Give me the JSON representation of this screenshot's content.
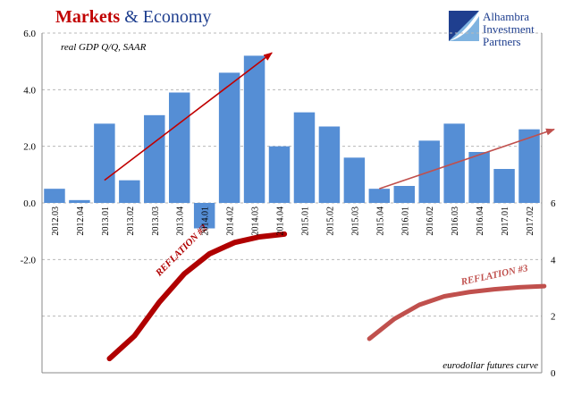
{
  "header": {
    "title_part1": "Markets",
    "title_part2": " & Economy"
  },
  "logo": {
    "line1": "Alhambra",
    "line2": "Investment",
    "line3": "Partners",
    "icon": "alhambra-logo-icon",
    "colors": {
      "navy": "#1f3f8f",
      "sky": "#7fb3e0"
    }
  },
  "colors": {
    "bar": "#558ed5",
    "arrow": "#c00000",
    "reflation2": "#b00000",
    "reflation3": "#c0504d",
    "grid": "#b8b8b8",
    "axis_text": "#000000"
  },
  "chart_data": {
    "type": "bar",
    "title": "",
    "subtitle": "real GDP Q/Q, SAAR",
    "categories": [
      "2012.03",
      "2012.04",
      "2013.01",
      "2013.02",
      "2013.03",
      "2013.04",
      "2014.01",
      "2014.02",
      "2014.03",
      "2014.04",
      "2015.01",
      "2015.02",
      "2015.03",
      "2015.04",
      "2016.01",
      "2016.02",
      "2016.03",
      "2016.04",
      "2017.01",
      "2017.02"
    ],
    "series": [
      {
        "values": [
          0.5,
          0.1,
          2.8,
          0.8,
          3.1,
          3.9,
          -0.9,
          4.6,
          5.2,
          2.0,
          3.2,
          2.7,
          1.6,
          0.5,
          0.6,
          2.2,
          2.8,
          1.8,
          1.2,
          2.6
        ]
      }
    ],
    "left_axis": {
      "ylim": [
        -6.0,
        6.0
      ],
      "tick_labels": [
        "6.0",
        "4.0",
        "2.0",
        "0.0",
        "-2.0"
      ],
      "tick_values": [
        6,
        4,
        2,
        0,
        -2
      ]
    },
    "right_axis": {
      "ylim": [
        0,
        6
      ],
      "tick_labels": [
        "6",
        "4",
        "2",
        "0"
      ],
      "tick_values": [
        6,
        4,
        2,
        0
      ],
      "label": "eurodollar futures curve"
    },
    "curves": [
      {
        "name": "REFLATION #2",
        "x": [
          2.7,
          3.7,
          4.7,
          5.7,
          6.7,
          7.7,
          8.7,
          9.7
        ],
        "y": [
          0.5,
          1.3,
          2.5,
          3.5,
          4.2,
          4.6,
          4.8,
          4.9
        ]
      },
      {
        "name": "REFLATION #3",
        "x": [
          13.1,
          14.1,
          15.1,
          16.1,
          17.1,
          18.1,
          19.1,
          20.1
        ],
        "y": [
          1.2,
          1.9,
          2.4,
          2.7,
          2.85,
          2.95,
          3.02,
          3.06
        ]
      }
    ],
    "arrows": [
      {
        "from_category": 2.5,
        "from_value": 0.8,
        "to_category": 9.2,
        "to_value": 5.3
      },
      {
        "from_category": 13.5,
        "from_value": 0.5,
        "to_category": 20.5,
        "to_value": 2.6
      }
    ],
    "grid": true,
    "legend": "none"
  }
}
